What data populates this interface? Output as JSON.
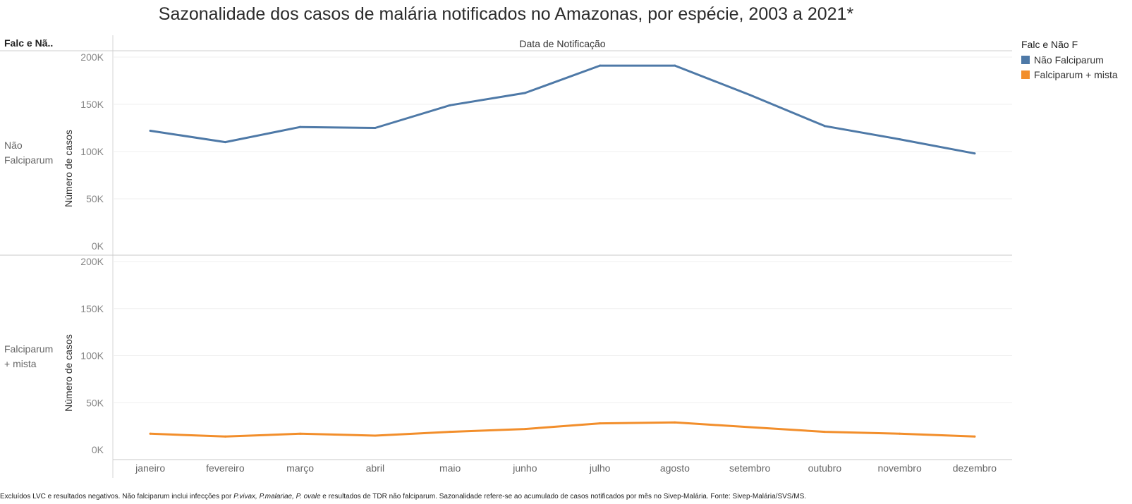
{
  "title": "Sazonalidade dos casos de malária notificados no Amazonas, por espécie, 2003 a 2021*",
  "header": {
    "pane_label": "Falc e Nã..",
    "column_label": "Data de Notificação"
  },
  "rows": [
    {
      "label": "Não Falciparum"
    },
    {
      "label": "Falciparum + mista"
    }
  ],
  "legend": {
    "title": "Falc e Não F",
    "items": [
      {
        "label": "Não Falciparum",
        "color": "#4e79a7"
      },
      {
        "label": "Falciparum + mista",
        "color": "#f28e2b"
      }
    ]
  },
  "footnote": {
    "part1": "Excluídos LVC e resultados negativos. Não falciparum inclui infecções por ",
    "italic": "P.vivax, P.malariae, P. ovale",
    "part2": " e resultados de TDR não falciparum. Sazonalidade refere-se ao acumulado de casos notificados por mês no Sivep-Malária. Fonte: Sivep-Malária/SVS/MS."
  },
  "chart_data": {
    "type": "line",
    "categories": [
      "janeiro",
      "fevereiro",
      "março",
      "abril",
      "maio",
      "junho",
      "julho",
      "agosto",
      "setembro",
      "outubro",
      "novembro",
      "dezembro"
    ],
    "ylabel": "Número de casos",
    "ylim": [
      0,
      200000
    ],
    "yticks": [
      0,
      50000,
      100000,
      150000,
      200000
    ],
    "ytick_labels": [
      "0K",
      "50K",
      "100K",
      "150K",
      "200K"
    ],
    "grid": true,
    "legend_position": "right",
    "series": [
      {
        "name": "Não Falciparum",
        "color": "#4e79a7",
        "values": [
          122000,
          110000,
          126000,
          125000,
          149000,
          162000,
          191000,
          191000,
          160000,
          127000,
          113000,
          98000
        ]
      },
      {
        "name": "Falciparum + mista",
        "color": "#f28e2b",
        "values": [
          17000,
          14000,
          17000,
          15000,
          19000,
          22000,
          28000,
          29000,
          24000,
          19000,
          17000,
          14000
        ]
      }
    ]
  }
}
